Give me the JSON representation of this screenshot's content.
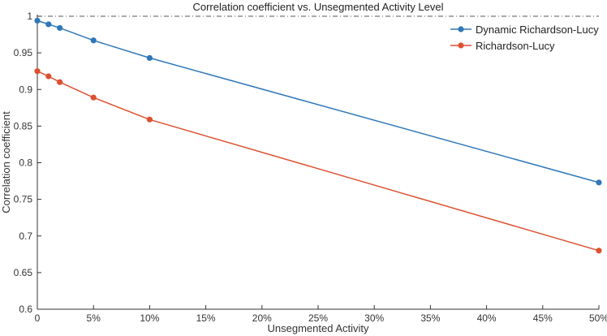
{
  "chart_data": {
    "type": "line",
    "title": "Correlation coefficient vs. Unsegmented Activity Level",
    "xlabel": "Unsegmented Activity",
    "ylabel": "Correlation coefficient",
    "x_ticks": [
      {
        "label": "0",
        "value": 0
      },
      {
        "label": "5%",
        "value": 5
      },
      {
        "label": "10%",
        "value": 10
      },
      {
        "label": "15%",
        "value": 15
      },
      {
        "label": "20%",
        "value": 20
      },
      {
        "label": "25%",
        "value": 25
      },
      {
        "label": "30%",
        "value": 30
      },
      {
        "label": "35%",
        "value": 35
      },
      {
        "label": "40%",
        "value": 40
      },
      {
        "label": "45%",
        "value": 45
      },
      {
        "label": "50%",
        "value": 50
      }
    ],
    "y_ticks": [
      {
        "label": "0.6",
        "value": 0.6
      },
      {
        "label": "0.65",
        "value": 0.65
      },
      {
        "label": "0.7",
        "value": 0.7
      },
      {
        "label": "0.75",
        "value": 0.75
      },
      {
        "label": "0.8",
        "value": 0.8
      },
      {
        "label": "0.85",
        "value": 0.85
      },
      {
        "label": "0.9",
        "value": 0.9
      },
      {
        "label": "0.95",
        "value": 0.95
      },
      {
        "label": "1",
        "value": 1
      }
    ],
    "xlim": [
      0,
      50
    ],
    "ylim": [
      0.6,
      1
    ],
    "reference_line": {
      "y": 1,
      "style": "dash-dot"
    },
    "legend_position": "top-right",
    "series": [
      {
        "name": "Dynamic Richardson-Lucy",
        "color": "#2f77b8",
        "x": [
          0,
          1,
          2,
          5,
          10,
          50
        ],
        "y": [
          0.994,
          0.989,
          0.984,
          0.967,
          0.943,
          0.773
        ]
      },
      {
        "name": "Richardson-Lucy",
        "color": "#dc5130",
        "x": [
          0,
          1,
          2,
          5,
          10,
          50
        ],
        "y": [
          0.925,
          0.918,
          0.91,
          0.889,
          0.859,
          0.68
        ]
      }
    ]
  }
}
